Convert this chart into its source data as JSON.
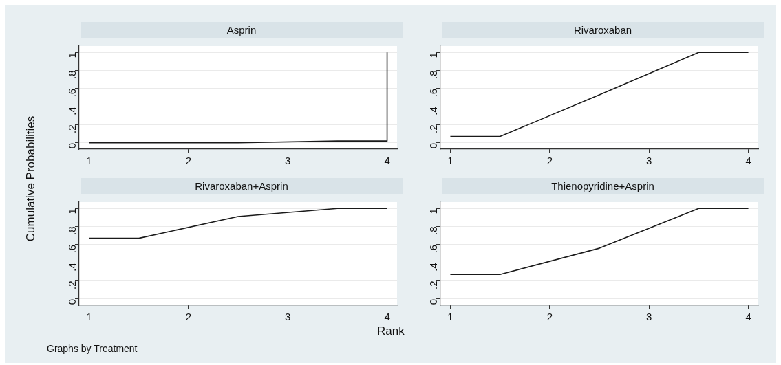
{
  "chart_data": [
    {
      "type": "line",
      "title": "Asprin",
      "ylabel": "Cumulative Probabilities",
      "xlim": [
        0.9,
        4.1
      ],
      "xticks": [
        1,
        2,
        3,
        4
      ],
      "ylim": [
        -0.07,
        1.07
      ],
      "yticks": [
        {
          "value": 0,
          "label": "0"
        },
        {
          "value": 0.2,
          "label": ".2"
        },
        {
          "value": 0.4,
          "label": ".4"
        },
        {
          "value": 0.6,
          "label": ".6"
        },
        {
          "value": 0.8,
          "label": ".8"
        },
        {
          "value": 1,
          "label": "1"
        }
      ],
      "grid": "y",
      "legend": false,
      "series": [
        {
          "color": "#1a1a1a",
          "x": [
            1,
            1.5,
            2.5,
            3.5,
            4,
            4
          ],
          "values": [
            0,
            0,
            0,
            0.02,
            0.02,
            1
          ]
        }
      ]
    },
    {
      "type": "line",
      "title": "Rivaroxaban",
      "xlim": [
        0.9,
        4.1
      ],
      "xticks": [
        1,
        2,
        3,
        4
      ],
      "ylim": [
        -0.07,
        1.07
      ],
      "yticks": [
        {
          "value": 0,
          "label": "0"
        },
        {
          "value": 0.2,
          "label": ".2"
        },
        {
          "value": 0.4,
          "label": ".4"
        },
        {
          "value": 0.6,
          "label": ".6"
        },
        {
          "value": 0.8,
          "label": ".8"
        },
        {
          "value": 1,
          "label": "1"
        }
      ],
      "grid": "y",
      "legend": false,
      "series": [
        {
          "color": "#1a1a1a",
          "x": [
            1,
            1.5,
            2.5,
            3.5,
            4
          ],
          "values": [
            0.07,
            0.07,
            0.53,
            1,
            1
          ]
        }
      ]
    },
    {
      "type": "line",
      "title": "Rivaroxaban+Asprin",
      "annotations": [
        "Graphs by Treatment"
      ],
      "xlim": [
        0.9,
        4.1
      ],
      "xticks": [
        1,
        2,
        3,
        4
      ],
      "ylim": [
        -0.07,
        1.07
      ],
      "yticks": [
        {
          "value": 0,
          "label": "0"
        },
        {
          "value": 0.2,
          "label": ".2"
        },
        {
          "value": 0.4,
          "label": ".4"
        },
        {
          "value": 0.6,
          "label": ".6"
        },
        {
          "value": 0.8,
          "label": ".8"
        },
        {
          "value": 1,
          "label": "1"
        }
      ],
      "grid": "y",
      "legend": false,
      "series": [
        {
          "color": "#1a1a1a",
          "x": [
            1,
            1.5,
            2.5,
            3.5,
            4
          ],
          "values": [
            0.67,
            0.67,
            0.91,
            1,
            1
          ]
        }
      ]
    },
    {
      "type": "line",
      "title": "Thienopyridine+Asprin",
      "xlabel": "Rank",
      "xlim": [
        0.9,
        4.1
      ],
      "xticks": [
        1,
        2,
        3,
        4
      ],
      "ylim": [
        -0.07,
        1.07
      ],
      "yticks": [
        {
          "value": 0,
          "label": "0"
        },
        {
          "value": 0.2,
          "label": ".2"
        },
        {
          "value": 0.4,
          "label": ".4"
        },
        {
          "value": 0.6,
          "label": ".6"
        },
        {
          "value": 0.8,
          "label": ".8"
        },
        {
          "value": 1,
          "label": "1"
        }
      ],
      "grid": "y",
      "legend": false,
      "series": [
        {
          "color": "#1a1a1a",
          "x": [
            1,
            1.5,
            2.5,
            3.5,
            4
          ],
          "values": [
            0.27,
            0.27,
            0.56,
            1,
            1
          ]
        }
      ]
    }
  ]
}
